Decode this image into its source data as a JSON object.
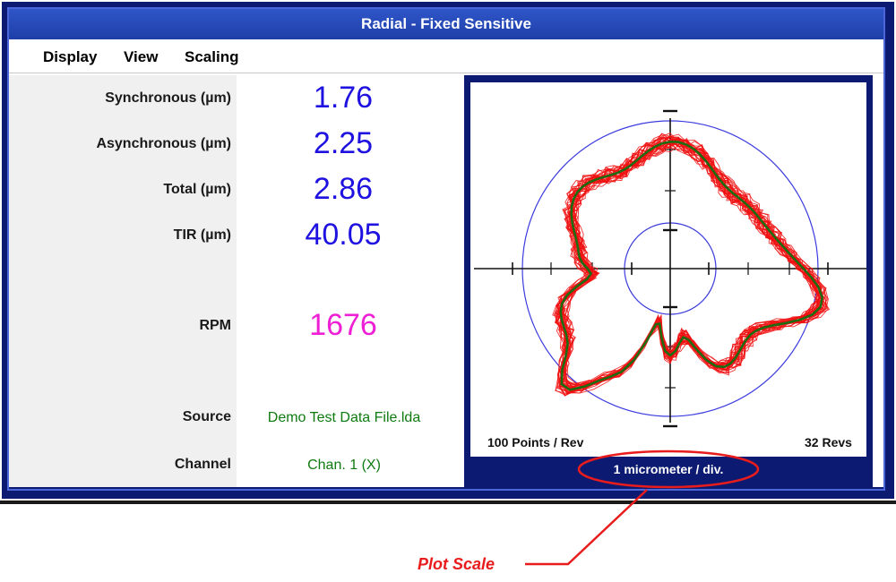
{
  "window": {
    "title": "Radial - Fixed Sensitive"
  },
  "menu": {
    "items": [
      "Display",
      "View",
      "Scaling"
    ]
  },
  "measurements": {
    "synchronous": {
      "label": "Synchronous (µm)",
      "value": "1.76"
    },
    "asynchronous": {
      "label": "Asynchronous (µm)",
      "value": "2.25"
    },
    "total": {
      "label": "Total (µm)",
      "value": "2.86"
    },
    "tir": {
      "label": "TIR (µm)",
      "value": "40.05"
    },
    "rpm": {
      "label": "RPM",
      "value": "1676"
    }
  },
  "info": {
    "source": {
      "label": "Source",
      "value": "Demo Test Data File.lda"
    },
    "channel": {
      "label": "Channel",
      "value": "Chan. 1 (X)"
    }
  },
  "plot": {
    "points_per_rev": "100 Points / Rev",
    "revs": "32 Revs",
    "scale_label": "1 micrometer / div.",
    "colors": {
      "revs": "#f01010",
      "mean": "#1f6b12",
      "circles": "#3b3bde",
      "axes": "#111111"
    }
  },
  "annotation": {
    "text": "Plot Scale",
    "color": "#e81c1c"
  }
}
